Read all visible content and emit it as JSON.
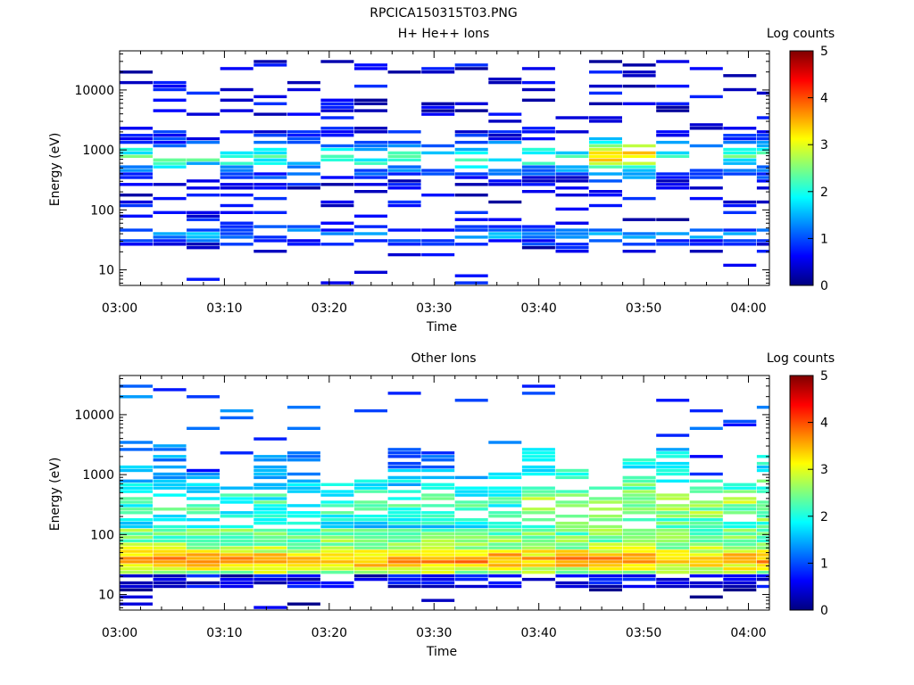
{
  "figure_title": "RPCICA150315T03.PNG",
  "colors": {
    "background": "#ffffff",
    "axis": "#000000",
    "colormap": [
      "#00007f",
      "#0000ff",
      "#007fff",
      "#00ffff",
      "#7fff7f",
      "#ffff00",
      "#ff7f00",
      "#ff0000",
      "#7f0000"
    ]
  },
  "chart_data": [
    {
      "type": "heatmap",
      "title": "H+ He++ Ions",
      "xlabel": "Time",
      "ylabel": "Energy (eV)",
      "x_ticks": [
        "03:00",
        "03:10",
        "03:20",
        "03:30",
        "03:40",
        "03:50",
        "04:00"
      ],
      "x_range_minutes": [
        0,
        62
      ],
      "time_bins_minutes": [
        0,
        3.2,
        6.4,
        9.6,
        12.8,
        16,
        19.2,
        22.4,
        25.6,
        28.8,
        32,
        35.2,
        38.4,
        41.6,
        44.8,
        48,
        51.2,
        54.4,
        57.6,
        60.8
      ],
      "y_scale": "log",
      "y_range_eV": [
        5.5,
        45000
      ],
      "y_ticks": [
        "10",
        "100",
        "1000",
        "10000"
      ],
      "colorbar": {
        "label": "Log counts",
        "range": [
          0,
          5
        ],
        "ticks": [
          "0",
          "1",
          "2",
          "3",
          "4",
          "5"
        ]
      },
      "profile": "hplus",
      "seed": 7
    },
    {
      "type": "heatmap",
      "title": "Other Ions",
      "xlabel": "Time",
      "ylabel": "Energy (eV)",
      "x_ticks": [
        "03:00",
        "03:10",
        "03:20",
        "03:30",
        "03:40",
        "03:50",
        "04:00"
      ],
      "x_range_minutes": [
        0,
        62
      ],
      "time_bins_minutes": [
        0,
        3.2,
        6.4,
        9.6,
        12.8,
        16,
        19.2,
        22.4,
        25.6,
        28.8,
        32,
        35.2,
        38.4,
        41.6,
        44.8,
        48,
        51.2,
        54.4,
        57.6,
        60.8
      ],
      "y_scale": "log",
      "y_range_eV": [
        5.5,
        45000
      ],
      "y_ticks": [
        "10",
        "100",
        "1000",
        "10000"
      ],
      "colorbar": {
        "label": "Log counts",
        "range": [
          0,
          5
        ],
        "ticks": [
          "0",
          "1",
          "2",
          "3",
          "4",
          "5"
        ]
      },
      "profile": "other",
      "seed": 19
    }
  ]
}
